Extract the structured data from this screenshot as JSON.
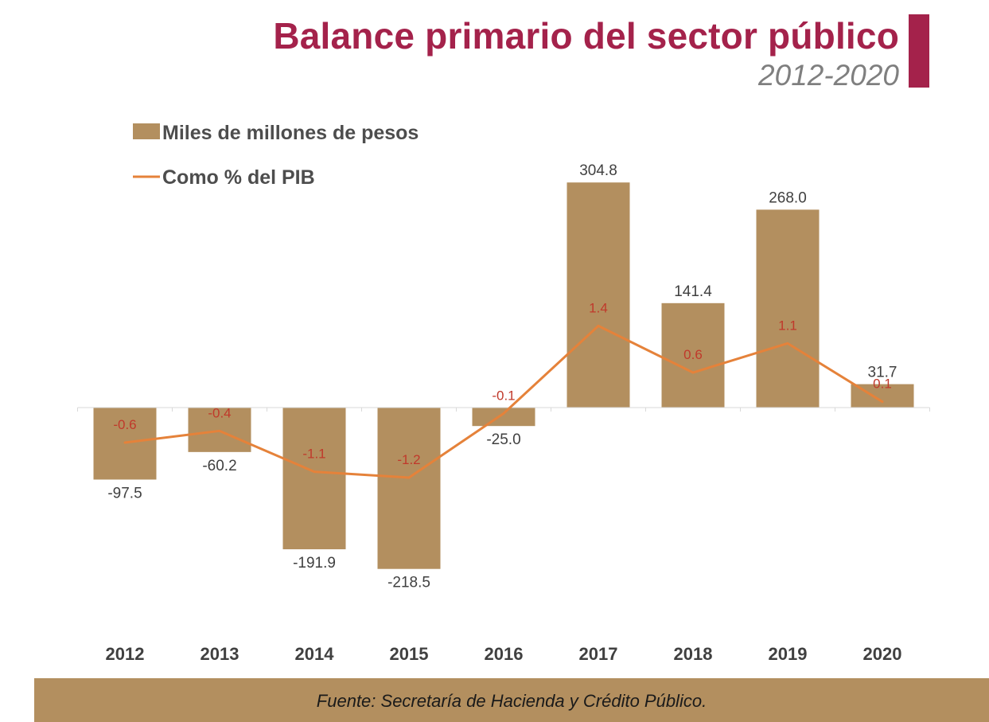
{
  "header": {
    "title": "Balance primario del sector público",
    "subtitle": "2012-2020"
  },
  "colors": {
    "title": "#a4224b",
    "accent": "#a4224b",
    "bars": "#b38f5f",
    "line": "#e5823a",
    "line_labels": "#c0392b",
    "footer": "#b38f5f"
  },
  "chart_data": {
    "type": "bar",
    "categories": [
      "2012",
      "2013",
      "2014",
      "2015",
      "2016",
      "2017",
      "2018",
      "2019",
      "2020"
    ],
    "series": [
      {
        "name": "Miles de millones de pesos",
        "type": "bar",
        "values": [
          -97.5,
          -60.2,
          -191.9,
          -218.5,
          -25.0,
          304.8,
          141.4,
          268.0,
          31.7
        ],
        "labels": [
          "-97.5",
          "-60.2",
          "-191.9",
          "-218.5",
          "-25.0",
          "304.8",
          "141.4",
          "268.0",
          "31.7"
        ]
      },
      {
        "name": "Como % del PIB",
        "type": "line",
        "values": [
          -0.6,
          -0.4,
          -1.1,
          -1.2,
          -0.1,
          1.4,
          0.6,
          1.1,
          0.1
        ],
        "labels": [
          "-0.6",
          "-0.4",
          "-1.1",
          "-1.2",
          "-0.1",
          "1.4",
          "0.6",
          "1.1",
          "0.1"
        ]
      }
    ],
    "legend_position": "top-left",
    "grid": false
  },
  "footer": {
    "source": "Fuente: Secretaría de Hacienda y Crédito Público."
  }
}
